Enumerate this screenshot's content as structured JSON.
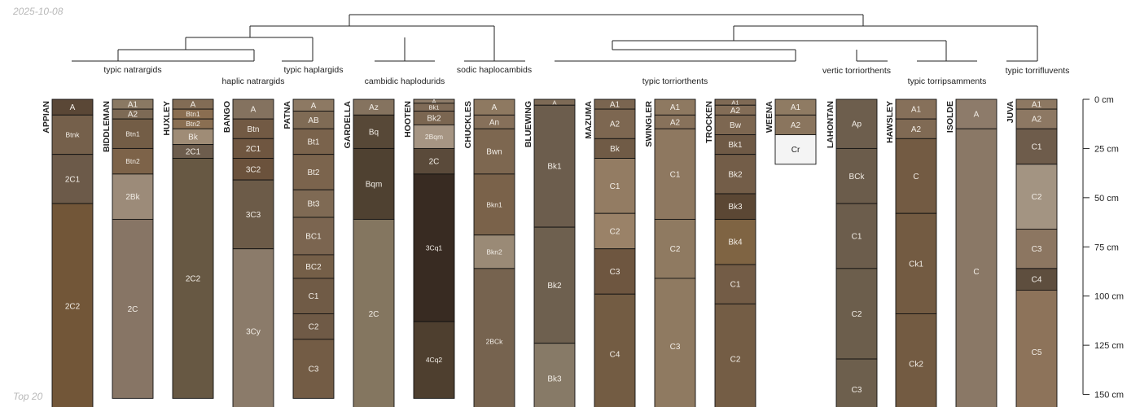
{
  "date": "2025-10-08",
  "footer": "Top 20",
  "dendrogram_labels": [
    "typic natrargids",
    "haplic natrargids",
    "typic haplargids",
    "cambidic haplodurids",
    "sodic haplocambids",
    "typic torriorthents",
    "vertic torriorthents",
    "typic torripsamments",
    "typic torrifluvents"
  ],
  "depth_axis": {
    "unit": "cm",
    "ticks": [
      {
        "depth": 0,
        "label": "0 cm"
      },
      {
        "depth": 25,
        "label": "25 cm"
      },
      {
        "depth": 50,
        "label": "50 cm"
      },
      {
        "depth": 75,
        "label": "75 cm"
      },
      {
        "depth": 100,
        "label": "100 cm"
      },
      {
        "depth": 125,
        "label": "125 cm"
      },
      {
        "depth": 150,
        "label": "150 cm"
      }
    ]
  },
  "profiles": [
    {
      "name": "APPIAN",
      "horizons": [
        {
          "name": "A",
          "top": 0,
          "bottom": 8,
          "color": "#5a4736"
        },
        {
          "name": "Btnk",
          "top": 8,
          "bottom": 28,
          "color": "#75604b"
        },
        {
          "name": "2C1",
          "top": 28,
          "bottom": 53,
          "color": "#6c5a49"
        },
        {
          "name": "2C2",
          "top": 53,
          "bottom": 157,
          "color": "#725638"
        }
      ]
    },
    {
      "name": "BIDDLEMAN",
      "horizons": [
        {
          "name": "A1",
          "top": 0,
          "bottom": 5,
          "color": "#8a7963"
        },
        {
          "name": "A2",
          "top": 5,
          "bottom": 10,
          "color": "#7d6a55"
        },
        {
          "name": "Btn1",
          "top": 10,
          "bottom": 25,
          "color": "#735d46"
        },
        {
          "name": "Btn2",
          "top": 25,
          "bottom": 38,
          "color": "#7d6349"
        },
        {
          "name": "2Bk",
          "top": 38,
          "bottom": 61,
          "color": "#9c8b79"
        },
        {
          "name": "2C",
          "top": 61,
          "bottom": 152,
          "color": "#877565"
        }
      ]
    },
    {
      "name": "HUXLEY",
      "horizons": [
        {
          "name": "A",
          "top": 0,
          "bottom": 5,
          "color": "#826c55"
        },
        {
          "name": "Btn1",
          "top": 5,
          "bottom": 10,
          "color": "#8a6e51"
        },
        {
          "name": "Btn2",
          "top": 10,
          "bottom": 15,
          "color": "#8a6f52"
        },
        {
          "name": "Bk",
          "top": 15,
          "bottom": 23,
          "color": "#9f8c76"
        },
        {
          "name": "2C1",
          "top": 23,
          "bottom": 30,
          "color": "#6d5d4d"
        },
        {
          "name": "2C2",
          "top": 30,
          "bottom": 152,
          "color": "#675843"
        }
      ]
    },
    {
      "name": "BANGO",
      "horizons": [
        {
          "name": "A",
          "top": 0,
          "bottom": 10,
          "color": "#84725f"
        },
        {
          "name": "Btn",
          "top": 10,
          "bottom": 20,
          "color": "#725a44"
        },
        {
          "name": "2C1",
          "top": 20,
          "bottom": 30,
          "color": "#6f5640"
        },
        {
          "name": "3C2",
          "top": 30,
          "bottom": 41,
          "color": "#6b523c"
        },
        {
          "name": "3C3",
          "top": 41,
          "bottom": 76,
          "color": "#6c5b48"
        },
        {
          "name": "3Cy",
          "top": 76,
          "bottom": 160,
          "color": "#8b7b6a"
        }
      ]
    },
    {
      "name": "PATNA",
      "horizons": [
        {
          "name": "A",
          "top": 0,
          "bottom": 6,
          "color": "#8d7963"
        },
        {
          "name": "AB",
          "top": 6,
          "bottom": 15,
          "color": "#7f6b55"
        },
        {
          "name": "Bt1",
          "top": 15,
          "bottom": 28,
          "color": "#7a634c"
        },
        {
          "name": "Bt2",
          "top": 28,
          "bottom": 46,
          "color": "#7b644d"
        },
        {
          "name": "Bt3",
          "top": 46,
          "bottom": 60,
          "color": "#7f6a54"
        },
        {
          "name": "BC1",
          "top": 60,
          "bottom": 79,
          "color": "#7b6550"
        },
        {
          "name": "BC2",
          "top": 79,
          "bottom": 91,
          "color": "#755f48"
        },
        {
          "name": "C1",
          "top": 91,
          "bottom": 109,
          "color": "#705b46"
        },
        {
          "name": "C2",
          "top": 109,
          "bottom": 122,
          "color": "#6f5a46"
        },
        {
          "name": "C3",
          "top": 122,
          "bottom": 152,
          "color": "#735c45"
        }
      ]
    },
    {
      "name": "GARDELLA",
      "horizons": [
        {
          "name": "Az",
          "top": 0,
          "bottom": 8,
          "color": "#85735f"
        },
        {
          "name": "Bq",
          "top": 8,
          "bottom": 25,
          "color": "#574837"
        },
        {
          "name": "Bqm",
          "top": 25,
          "bottom": 61,
          "color": "#4f4131"
        },
        {
          "name": "2C",
          "top": 61,
          "bottom": 157,
          "color": "#847660"
        }
      ]
    },
    {
      "name": "HOOTEN",
      "horizons": [
        {
          "name": "A",
          "top": 0,
          "bottom": 2,
          "color": "#8e7c69"
        },
        {
          "name": "Bk1",
          "top": 2,
          "bottom": 6,
          "color": "#7f6b57"
        },
        {
          "name": "Bk2",
          "top": 6,
          "bottom": 13,
          "color": "#7b6651"
        },
        {
          "name": "2Bqm",
          "top": 13,
          "bottom": 25,
          "color": "#a69583"
        },
        {
          "name": "2C",
          "top": 25,
          "bottom": 38,
          "color": "#5a4a3a"
        },
        {
          "name": "3Cq1",
          "top": 38,
          "bottom": 113,
          "color": "#382b22"
        },
        {
          "name": "4Cq2",
          "top": 113,
          "bottom": 152,
          "color": "#4e3f2f"
        }
      ]
    },
    {
      "name": "CHUCKLES",
      "horizons": [
        {
          "name": "A",
          "top": 0,
          "bottom": 8,
          "color": "#8e7961"
        },
        {
          "name": "An",
          "top": 8,
          "bottom": 15,
          "color": "#86705a"
        },
        {
          "name": "Bwn",
          "top": 15,
          "bottom": 38,
          "color": "#7d6750"
        },
        {
          "name": "Bkn1",
          "top": 38,
          "bottom": 69,
          "color": "#7a624a"
        },
        {
          "name": "Bkn2",
          "top": 69,
          "bottom": 86,
          "color": "#9a8a76"
        },
        {
          "name": "2BCk",
          "top": 86,
          "bottom": 160,
          "color": "#76634f"
        }
      ]
    },
    {
      "name": "BLUEWING",
      "horizons": [
        {
          "name": "A",
          "top": 0,
          "bottom": 3,
          "color": "#7d6a56"
        },
        {
          "name": "Bk1",
          "top": 3,
          "bottom": 65,
          "color": "#6c5d4d"
        },
        {
          "name": "Bk2",
          "top": 65,
          "bottom": 124,
          "color": "#6e604f"
        },
        {
          "name": "Bk3",
          "top": 124,
          "bottom": 160,
          "color": "#877a67"
        }
      ]
    },
    {
      "name": "MAZUMA",
      "horizons": [
        {
          "name": "A1",
          "top": 0,
          "bottom": 5,
          "color": "#7a6550"
        },
        {
          "name": "A2",
          "top": 5,
          "bottom": 20,
          "color": "#7d6751"
        },
        {
          "name": "Bk",
          "top": 20,
          "bottom": 30,
          "color": "#705b46"
        },
        {
          "name": "C1",
          "top": 30,
          "bottom": 58,
          "color": "#937c63"
        },
        {
          "name": "C2",
          "top": 58,
          "bottom": 76,
          "color": "#9a8268"
        },
        {
          "name": "C3",
          "top": 76,
          "bottom": 99,
          "color": "#6e5640"
        },
        {
          "name": "C4",
          "top": 99,
          "bottom": 160,
          "color": "#735c43"
        }
      ]
    },
    {
      "name": "SWINGLER",
      "horizons": [
        {
          "name": "A1",
          "top": 0,
          "bottom": 8,
          "color": "#8e7961"
        },
        {
          "name": "A2",
          "top": 8,
          "bottom": 15,
          "color": "#88725b"
        },
        {
          "name": "C1",
          "top": 15,
          "bottom": 61,
          "color": "#8e7860"
        },
        {
          "name": "C2",
          "top": 61,
          "bottom": 91,
          "color": "#8f7a61"
        },
        {
          "name": "C3",
          "top": 91,
          "bottom": 160,
          "color": "#8f7a61"
        }
      ]
    },
    {
      "name": "TROCKEN",
      "horizons": [
        {
          "name": "A1",
          "top": 0,
          "bottom": 3,
          "color": "#7f6a55"
        },
        {
          "name": "A2",
          "top": 3,
          "bottom": 8,
          "color": "#836d57"
        },
        {
          "name": "Bw",
          "top": 8,
          "bottom": 18,
          "color": "#7d6751"
        },
        {
          "name": "Bk1",
          "top": 18,
          "bottom": 28,
          "color": "#6f5a46"
        },
        {
          "name": "Bk2",
          "top": 28,
          "bottom": 48,
          "color": "#735d48"
        },
        {
          "name": "Bk3",
          "top": 48,
          "bottom": 61,
          "color": "#5b4734"
        },
        {
          "name": "Bk4",
          "top": 61,
          "bottom": 84,
          "color": "#7f6443"
        },
        {
          "name": "C1",
          "top": 84,
          "bottom": 104,
          "color": "#735c46"
        },
        {
          "name": "C2",
          "top": 104,
          "bottom": 160,
          "color": "#745d45"
        }
      ]
    },
    {
      "name": "WEENA",
      "horizons": [
        {
          "name": "A1",
          "top": 0,
          "bottom": 8,
          "color": "#8f7b63"
        },
        {
          "name": "A2",
          "top": 8,
          "bottom": 18,
          "color": "#8a755e"
        },
        {
          "name": "Cr",
          "top": 18,
          "bottom": 33,
          "color": "#f4f4f4"
        }
      ]
    },
    {
      "name": "LAHONTAN",
      "horizons": [
        {
          "name": "Ap",
          "top": 0,
          "bottom": 25,
          "color": "#6d5e4d"
        },
        {
          "name": "BCk",
          "top": 25,
          "bottom": 53,
          "color": "#6b5c4b"
        },
        {
          "name": "C1",
          "top": 53,
          "bottom": 86,
          "color": "#6c5d4c"
        },
        {
          "name": "C2",
          "top": 86,
          "bottom": 132,
          "color": "#6c5e4c"
        },
        {
          "name": "C3",
          "top": 132,
          "bottom": 163,
          "color": "#6d5f4d"
        }
      ]
    },
    {
      "name": "HAWSLEY",
      "horizons": [
        {
          "name": "A1",
          "top": 0,
          "bottom": 10,
          "color": "#86705a"
        },
        {
          "name": "A2",
          "top": 10,
          "bottom": 20,
          "color": "#806a54"
        },
        {
          "name": "C",
          "top": 20,
          "bottom": 58,
          "color": "#735b43"
        },
        {
          "name": "Ck1",
          "top": 58,
          "bottom": 109,
          "color": "#735b42"
        },
        {
          "name": "Ck2",
          "top": 109,
          "bottom": 160,
          "color": "#735b42"
        }
      ]
    },
    {
      "name": "ISOLDE",
      "horizons": [
        {
          "name": "A",
          "top": 0,
          "bottom": 15,
          "color": "#8d7b6a"
        },
        {
          "name": "C",
          "top": 15,
          "bottom": 160,
          "color": "#8a7866"
        }
      ]
    },
    {
      "name": "JUVA",
      "horizons": [
        {
          "name": "A1",
          "top": 0,
          "bottom": 5,
          "color": "#8d7862"
        },
        {
          "name": "A2",
          "top": 5,
          "bottom": 15,
          "color": "#8d7863"
        },
        {
          "name": "C1",
          "top": 15,
          "bottom": 33,
          "color": "#6e5c4b"
        },
        {
          "name": "C2",
          "top": 33,
          "bottom": 66,
          "color": "#a39482"
        },
        {
          "name": "C3",
          "top": 66,
          "bottom": 86,
          "color": "#8c7661"
        },
        {
          "name": "C4",
          "top": 86,
          "bottom": 97,
          "color": "#5e4e3e"
        },
        {
          "name": "C5",
          "top": 97,
          "bottom": 160,
          "color": "#8d735a"
        }
      ]
    }
  ]
}
